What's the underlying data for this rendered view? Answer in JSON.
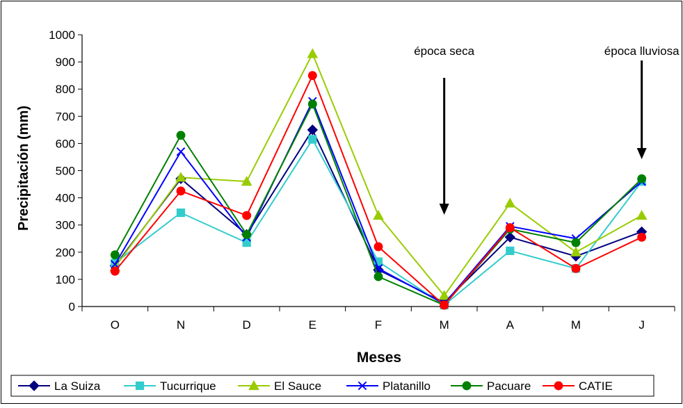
{
  "chart_data": {
    "type": "line",
    "title": "",
    "xlabel": "Meses",
    "ylabel": "Precipitación (mm)",
    "categories": [
      "O",
      "N",
      "D",
      "E",
      "F",
      "M",
      "A",
      "M",
      "J"
    ],
    "ylim": [
      0,
      1000
    ],
    "yticks": [
      0,
      100,
      200,
      300,
      400,
      500,
      600,
      700,
      800,
      900,
      1000
    ],
    "grid": false,
    "legend_position": "bottom",
    "series": [
      {
        "name": "La Suiza",
        "color": "#000080",
        "marker": "diamond",
        "values": [
          150,
          470,
          265,
          650,
          135,
          15,
          255,
          185,
          275
        ]
      },
      {
        "name": "Tucurrique",
        "color": "#33CCCC",
        "marker": "square",
        "values": [
          160,
          345,
          235,
          615,
          165,
          5,
          205,
          140,
          460
        ]
      },
      {
        "name": "El Sauce",
        "color": "#99CC00",
        "marker": "triangle",
        "values": [
          145,
          475,
          460,
          930,
          335,
          40,
          380,
          200,
          335
        ]
      },
      {
        "name": "Platanillo",
        "color": "#0000FF",
        "marker": "x",
        "values": [
          155,
          570,
          255,
          755,
          140,
          10,
          295,
          250,
          460
        ]
      },
      {
        "name": "Pacuare",
        "color": "#008000",
        "marker": "circle",
        "values": [
          190,
          630,
          265,
          745,
          110,
          5,
          285,
          235,
          470
        ]
      },
      {
        "name": "CATIE",
        "color": "#FF0000",
        "marker": "circle",
        "values": [
          130,
          425,
          335,
          850,
          220,
          5,
          290,
          140,
          255
        ]
      }
    ],
    "annotations": [
      {
        "text": "época seca",
        "category_index": 5
      },
      {
        "text": "época lluviosa",
        "category_index": 8
      }
    ]
  }
}
